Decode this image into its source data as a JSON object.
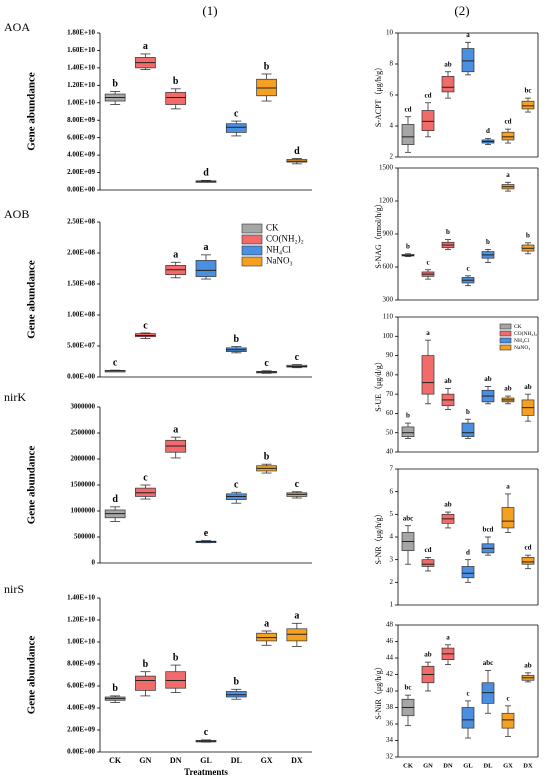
{
  "headers": [
    "(1)",
    "(2)"
  ],
  "chart_data": [
    {
      "type": "box",
      "title": "AOA",
      "y_label": "Gene abundance",
      "colors": [
        "#a6a6a6",
        "#f26b6b",
        "#f26b6b",
        "#4a8fe0",
        "#4a8fe0",
        "#f5a020",
        "#f5a020"
      ],
      "boxes": [
        {
          "min": 9800000000.0,
          "q1": 10200000000.0,
          "median": 10600000000.0,
          "q3": 11000000000.0,
          "max": 11300000000.0
        },
        {
          "min": 13800000000.0,
          "q1": 14000000000.0,
          "median": 14600000000.0,
          "q3": 15200000000.0,
          "max": 15600000000.0
        },
        {
          "min": 9300000000.0,
          "q1": 9800000000.0,
          "median": 10600000000.0,
          "q3": 11200000000.0,
          "max": 11600000000.0
        },
        {
          "min": 900000000.0,
          "q1": 950000000.0,
          "median": 1000000000.0,
          "q3": 1050000000.0,
          "max": 1100000000.0
        },
        {
          "min": 6200000000.0,
          "q1": 6600000000.0,
          "median": 7200000000.0,
          "q3": 7600000000.0,
          "max": 7900000000.0
        },
        {
          "min": 10200000000.0,
          "q1": 10800000000.0,
          "median": 11700000000.0,
          "q3": 12700000000.0,
          "max": 13300000000.0
        },
        {
          "min": 3000000000.0,
          "q1": 3200000000.0,
          "median": 3300000000.0,
          "q3": 3500000000.0,
          "max": 3600000000.0
        }
      ],
      "annotations": [
        "b",
        "a",
        "b",
        "d",
        "c",
        "b",
        "d"
      ],
      "ylim": [
        0,
        18000000000.0
      ],
      "yticks": [
        {
          "value": 0,
          "label": "0.00E+00"
        },
        {
          "value": 2000000000.0,
          "label": "2.00E+09"
        },
        {
          "value": 4000000000.0,
          "label": "4.00E+09"
        },
        {
          "value": 6000000000.0,
          "label": "6.00E+09"
        },
        {
          "value": 8000000000.0,
          "label": "8.00E+09"
        },
        {
          "value": 10000000000.0,
          "label": "1.00E+10"
        },
        {
          "value": 12000000000.0,
          "label": "1.20E+10"
        },
        {
          "value": 14000000000.0,
          "label": "1.40E+10"
        },
        {
          "value": 16000000000.0,
          "label": "1.60E+10"
        },
        {
          "value": 18000000000.0,
          "label": "1.80E+10"
        }
      ]
    },
    {
      "type": "box",
      "title": "AOB",
      "y_label": "Gene abundance",
      "colors": [
        "#a6a6a6",
        "#f26b6b",
        "#f26b6b",
        "#4a8fe0",
        "#4a8fe0",
        "#f5a020",
        "#f5a020"
      ],
      "boxes": [
        {
          "min": 9000000.0,
          "q1": 9500000.0,
          "median": 10000000.0,
          "q3": 10500000.0,
          "max": 11000000.0
        },
        {
          "min": 62000000.0,
          "q1": 65000000.0,
          "median": 67000000.0,
          "q3": 70000000.0,
          "max": 71000000.0
        },
        {
          "min": 160000000.0,
          "q1": 165000000.0,
          "median": 173000000.0,
          "q3": 180000000.0,
          "max": 185000000.0
        },
        {
          "min": 158000000.0,
          "q1": 162000000.0,
          "median": 172000000.0,
          "q3": 188000000.0,
          "max": 197000000.0
        },
        {
          "min": 39000000.0,
          "q1": 41000000.0,
          "median": 44000000.0,
          "q3": 47000000.0,
          "max": 49000000.0
        },
        {
          "min": 6000000.0,
          "q1": 7000000.0,
          "median": 8000000.0,
          "q3": 9000000.0,
          "max": 10000000.0
        },
        {
          "min": 15000000.0,
          "q1": 16000000.0,
          "median": 17000000.0,
          "q3": 19000000.0,
          "max": 20000000.0
        }
      ],
      "annotations": [
        "c",
        "c",
        "a",
        "a",
        "b",
        "c",
        "c"
      ],
      "legend": [
        {
          "name": "CK",
          "color": "#a6a6a6"
        },
        {
          "name": "CO(NH₂)₂",
          "color": "#f26b6b"
        },
        {
          "name": "NH₄Cl",
          "color": "#4a8fe0"
        },
        {
          "name": "NaNO₃",
          "color": "#f5a020"
        }
      ],
      "ylim": [
        0,
        250000000.0
      ],
      "yticks": [
        {
          "value": 0,
          "label": "0.00E+00"
        },
        {
          "value": 50000000.0,
          "label": "5.00E+07"
        },
        {
          "value": 100000000.0,
          "label": "1.00E+08"
        },
        {
          "value": 150000000.0,
          "label": "1.50E+08"
        },
        {
          "value": 200000000.0,
          "label": "2.00E+08"
        },
        {
          "value": 250000000.0,
          "label": "2.50E+08"
        }
      ]
    },
    {
      "type": "box",
      "title": "nirK",
      "y_label": "Gene abundance",
      "colors": [
        "#a6a6a6",
        "#f26b6b",
        "#f26b6b",
        "#4a8fe0",
        "#4a8fe0",
        "#f5a020",
        "#f5a020"
      ],
      "boxes": [
        {
          "min": 800000,
          "q1": 870000,
          "median": 950000,
          "q3": 1020000,
          "max": 1080000
        },
        {
          "min": 1230000,
          "q1": 1280000,
          "median": 1350000,
          "q3": 1440000,
          "max": 1500000
        },
        {
          "min": 2020000,
          "q1": 2130000,
          "median": 2250000,
          "q3": 2360000,
          "max": 2420000
        },
        {
          "min": 390000,
          "q1": 400000,
          "median": 410000,
          "q3": 420000,
          "max": 430000
        },
        {
          "min": 1150000,
          "q1": 1220000,
          "median": 1280000,
          "q3": 1330000,
          "max": 1360000
        },
        {
          "min": 1730000,
          "q1": 1770000,
          "median": 1820000,
          "q3": 1870000,
          "max": 1900000
        },
        {
          "min": 1250000,
          "q1": 1280000,
          "median": 1320000,
          "q3": 1350000,
          "max": 1370000
        }
      ],
      "annotations": [
        "d",
        "c",
        "a",
        "e",
        "c",
        "b",
        "c"
      ],
      "ylim": [
        0,
        3000000
      ],
      "yticks": [
        0,
        500000,
        1000000,
        1500000,
        2000000,
        2500000,
        3000000
      ]
    },
    {
      "type": "box",
      "title": "nirS",
      "y_label": "Gene abundance",
      "x_label": "Treatments",
      "colors": [
        "#a6a6a6",
        "#f26b6b",
        "#f26b6b",
        "#4a8fe0",
        "#4a8fe0",
        "#f5a020",
        "#f5a020"
      ],
      "categories": [
        "CK",
        "GN",
        "DN",
        "GL",
        "DL",
        "GX",
        "DX"
      ],
      "boxes": [
        {
          "min": 4500000000.0,
          "q1": 4700000000.0,
          "median": 4850000000.0,
          "q3": 5000000000.0,
          "max": 5100000000.0
        },
        {
          "min": 5100000000.0,
          "q1": 5600000000.0,
          "median": 6500000000.0,
          "q3": 6900000000.0,
          "max": 7300000000.0
        },
        {
          "min": 5400000000.0,
          "q1": 5800000000.0,
          "median": 6500000000.0,
          "q3": 7300000000.0,
          "max": 7900000000.0
        },
        {
          "min": 900000000.0,
          "q1": 950000000.0,
          "median": 1000000000.0,
          "q3": 1050000000.0,
          "max": 1100000000.0
        },
        {
          "min": 4800000000.0,
          "q1": 5000000000.0,
          "median": 5200000000.0,
          "q3": 5500000000.0,
          "max": 5700000000.0
        },
        {
          "min": 9700000000.0,
          "q1": 10100000000.0,
          "median": 10400000000.0,
          "q3": 10800000000.0,
          "max": 11000000000.0
        },
        {
          "min": 9600000000.0,
          "q1": 10100000000.0,
          "median": 10700000000.0,
          "q3": 11200000000.0,
          "max": 11700000000.0
        }
      ],
      "annotations": [
        "b",
        "b",
        "b",
        "c",
        "b",
        "a",
        "a"
      ],
      "ylim": [
        0,
        14000000000.0
      ],
      "yticks": [
        {
          "value": 0,
          "label": "0.00E+00"
        },
        {
          "value": 2000000000.0,
          "label": "2.00E+09"
        },
        {
          "value": 4000000000.0,
          "label": "4.00E+09"
        },
        {
          "value": 6000000000.0,
          "label": "6.00E+09"
        },
        {
          "value": 8000000000.0,
          "label": "8.00E+09"
        },
        {
          "value": 10000000000.0,
          "label": "1.00E+10"
        },
        {
          "value": 12000000000.0,
          "label": "1.20E+10"
        },
        {
          "value": 14000000000.0,
          "label": "1.40E+10"
        }
      ]
    },
    {
      "type": "box",
      "y_label": "S-ACPT（μg/h/g）",
      "colors": [
        "#a6a6a6",
        "#f26b6b",
        "#f26b6b",
        "#4a8fe0",
        "#4a8fe0",
        "#f5a020",
        "#f5a020"
      ],
      "boxes": [
        {
          "min": 2.3,
          "q1": 2.8,
          "median": 3.3,
          "q3": 4.1,
          "max": 4.6
        },
        {
          "min": 3.3,
          "q1": 3.7,
          "median": 4.3,
          "q3": 5.0,
          "max": 5.5
        },
        {
          "min": 5.8,
          "q1": 6.2,
          "median": 6.5,
          "q3": 7.2,
          "max": 7.5
        },
        {
          "min": 7.3,
          "q1": 7.5,
          "median": 8.2,
          "q3": 9.0,
          "max": 9.4
        },
        {
          "min": 2.8,
          "q1": 2.9,
          "median": 3.0,
          "q3": 3.1,
          "max": 3.2
        },
        {
          "min": 2.9,
          "q1": 3.1,
          "median": 3.3,
          "q3": 3.6,
          "max": 3.8
        },
        {
          "min": 4.9,
          "q1": 5.1,
          "median": 5.3,
          "q3": 5.6,
          "max": 5.8
        }
      ],
      "annotations": [
        "cd",
        "cd",
        "ab",
        "a",
        "d",
        "cd",
        "bc"
      ],
      "ylim": [
        2,
        10
      ],
      "yticks": [
        2,
        4,
        6,
        8,
        10
      ]
    },
    {
      "type": "box",
      "y_label": "S-NAG（nmol/h/g）",
      "colors": [
        "#a6a6a6",
        "#f26b6b",
        "#f26b6b",
        "#4a8fe0",
        "#4a8fe0",
        "#f5a020",
        "#f5a020"
      ],
      "boxes": [
        {
          "min": 695,
          "q1": 700,
          "median": 705,
          "q3": 715,
          "max": 720
        },
        {
          "min": 490,
          "q1": 515,
          "median": 535,
          "q3": 555,
          "max": 575
        },
        {
          "min": 760,
          "q1": 775,
          "median": 800,
          "q3": 825,
          "max": 850
        },
        {
          "min": 430,
          "q1": 455,
          "median": 480,
          "q3": 505,
          "max": 520
        },
        {
          "min": 640,
          "q1": 680,
          "median": 710,
          "q3": 740,
          "max": 760
        },
        {
          "min": 1290,
          "q1": 1310,
          "median": 1330,
          "q3": 1350,
          "max": 1370
        },
        {
          "min": 720,
          "q1": 745,
          "median": 770,
          "q3": 800,
          "max": 820
        }
      ],
      "annotations": [
        "b",
        "c",
        "b",
        "c",
        "b",
        "a",
        "b"
      ],
      "ylim": [
        300,
        1500
      ],
      "yticks": [
        300,
        600,
        900,
        1200,
        1500
      ]
    },
    {
      "type": "box",
      "y_label": "S-UE（μg/d/g）",
      "colors": [
        "#a6a6a6",
        "#f26b6b",
        "#f26b6b",
        "#4a8fe0",
        "#4a8fe0",
        "#f5a020",
        "#f5a020"
      ],
      "boxes": [
        {
          "min": 47,
          "q1": 48,
          "median": 50,
          "q3": 53,
          "max": 55
        },
        {
          "min": 65,
          "q1": 70,
          "median": 76,
          "q3": 90,
          "max": 98
        },
        {
          "min": 62,
          "q1": 64,
          "median": 67,
          "q3": 70,
          "max": 73
        },
        {
          "min": 47,
          "q1": 48,
          "median": 50,
          "q3": 55,
          "max": 57
        },
        {
          "min": 65,
          "q1": 66,
          "median": 69,
          "q3": 72,
          "max": 74
        },
        {
          "min": 65,
          "q1": 66,
          "median": 67,
          "q3": 68,
          "max": 69
        },
        {
          "min": 56,
          "q1": 59,
          "median": 63,
          "q3": 67,
          "max": 70
        }
      ],
      "annotations": [
        "b",
        "a",
        "ab",
        "b",
        "ab",
        "ab",
        "ab"
      ],
      "legend": [
        {
          "name": "CK",
          "color": "#a6a6a6"
        },
        {
          "name": "CO(NH₂)₂",
          "color": "#f26b6b"
        },
        {
          "name": "NH₄Cl",
          "color": "#4a8fe0"
        },
        {
          "name": "NaNO₃",
          "color": "#f5a020"
        }
      ],
      "ylim": [
        40,
        110
      ],
      "yticks": [
        40,
        50,
        60,
        70,
        80,
        90,
        100,
        110
      ]
    },
    {
      "type": "box",
      "y_label": "S-NR（μg/h/g）",
      "colors": [
        "#a6a6a6",
        "#f26b6b",
        "#f26b6b",
        "#4a8fe0",
        "#4a8fe0",
        "#f5a020",
        "#f5a020"
      ],
      "boxes": [
        {
          "min": 2.8,
          "q1": 3.4,
          "median": 3.8,
          "q3": 4.2,
          "max": 4.5
        },
        {
          "min": 2.5,
          "q1": 2.7,
          "median": 2.8,
          "q3": 3.0,
          "max": 3.1
        },
        {
          "min": 4.4,
          "q1": 4.6,
          "median": 4.8,
          "q3": 5.0,
          "max": 5.1
        },
        {
          "min": 2.0,
          "q1": 2.2,
          "median": 2.4,
          "q3": 2.7,
          "max": 3.0
        },
        {
          "min": 3.2,
          "q1": 3.3,
          "median": 3.5,
          "q3": 3.7,
          "max": 4.0
        },
        {
          "min": 4.2,
          "q1": 4.4,
          "median": 4.7,
          "q3": 5.3,
          "max": 5.9
        },
        {
          "min": 2.6,
          "q1": 2.8,
          "median": 2.9,
          "q3": 3.1,
          "max": 3.2
        }
      ],
      "annotations": [
        "abc",
        "cd",
        "ab",
        "d",
        "bcd",
        "a",
        "cd"
      ],
      "ylim": [
        1,
        7
      ],
      "yticks": [
        1,
        2,
        3,
        4,
        5,
        6,
        7
      ]
    },
    {
      "type": "box",
      "y_label": "S-NiR（μg/h/g）",
      "colors": [
        "#a6a6a6",
        "#f26b6b",
        "#f26b6b",
        "#4a8fe0",
        "#4a8fe0",
        "#f5a020",
        "#f5a020"
      ],
      "categories": [
        "CK",
        "GN",
        "DN",
        "GL",
        "DL",
        "GX",
        "DX"
      ],
      "boxes": [
        {
          "min": 35.8,
          "q1": 37,
          "median": 38,
          "q3": 39,
          "max": 39.5
        },
        {
          "min": 40,
          "q1": 41,
          "median": 42,
          "q3": 43,
          "max": 43.5
        },
        {
          "min": 43.2,
          "q1": 43.8,
          "median": 44.5,
          "q3": 45.2,
          "max": 45.6
        },
        {
          "min": 34.3,
          "q1": 35.5,
          "median": 36.5,
          "q3": 38,
          "max": 38.8
        },
        {
          "min": 37.3,
          "q1": 38.5,
          "median": 39.8,
          "q3": 41,
          "max": 42.5
        },
        {
          "min": 34.5,
          "q1": 35.5,
          "median": 36.5,
          "q3": 37.3,
          "max": 38.2
        },
        {
          "min": 41.1,
          "q1": 41.3,
          "median": 41.6,
          "q3": 41.9,
          "max": 42.2
        }
      ],
      "annotations": [
        "bc",
        "ab",
        "a",
        "c",
        "abc",
        "c",
        "ab"
      ],
      "ylim": [
        32,
        48
      ],
      "yticks": [
        32,
        34,
        36,
        38,
        40,
        42,
        44,
        46,
        48
      ]
    }
  ]
}
